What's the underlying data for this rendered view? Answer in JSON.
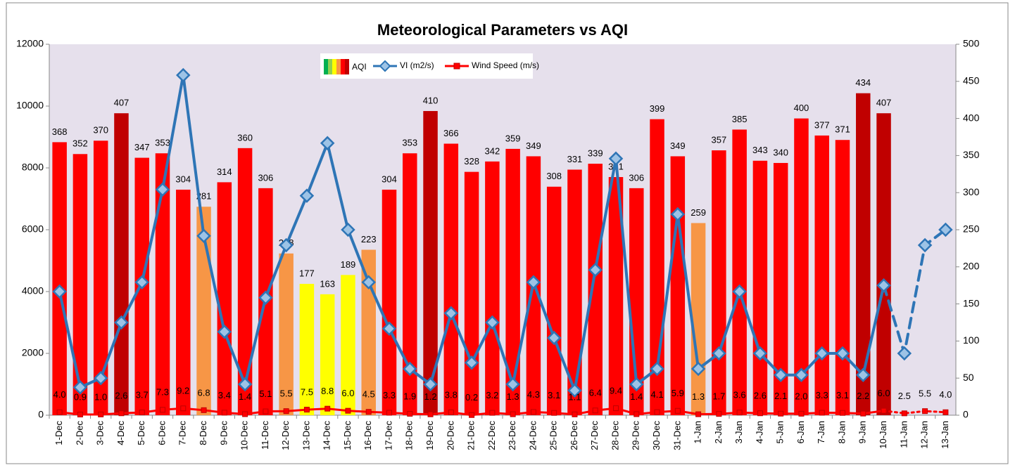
{
  "chart_data": {
    "type": "bar",
    "title": "Meteorological Parameters vs AQI",
    "categories": [
      "1-Dec",
      "2-Dec",
      "3-Dec",
      "4-Dec",
      "5-Dec",
      "6-Dec",
      "7-Dec",
      "8-Dec",
      "9-Dec",
      "10-Dec",
      "11-Dec",
      "12-Dec",
      "13-Dec",
      "14-Dec",
      "15-Dec",
      "16-Dec",
      "17-Dec",
      "18-Dec",
      "19-Dec",
      "20-Dec",
      "21-Dec",
      "22-Dec",
      "23-Dec",
      "24-Dec",
      "25-Dec",
      "26-Dec",
      "27-Dec",
      "28-Dec",
      "29-Dec",
      "30-Dec",
      "31-Dec",
      "1-Jan",
      "2-Jan",
      "3-Jan",
      "4-Jan",
      "5-Jan",
      "6-Jan",
      "7-Jan",
      "8-Jan",
      "9-Jan",
      "10-Jan",
      "11-Jan",
      "12-Jan",
      "13-Jan"
    ],
    "series": [
      {
        "name": "AQI",
        "type": "bar",
        "axis": "y2",
        "values": [
          368,
          352,
          370,
          407,
          347,
          353,
          304,
          281,
          314,
          360,
          306,
          218,
          177,
          163,
          189,
          223,
          304,
          353,
          410,
          366,
          328,
          342,
          359,
          349,
          308,
          331,
          339,
          321,
          306,
          399,
          349,
          259,
          357,
          385,
          343,
          340,
          400,
          377,
          371,
          434,
          407,
          null,
          null,
          null
        ],
        "colors": [
          "#ff0000",
          "#ff0000",
          "#ff0000",
          "#c00000",
          "#ff0000",
          "#ff0000",
          "#ff0000",
          "#f79646",
          "#ff0000",
          "#ff0000",
          "#ff0000",
          "#f79646",
          "#ffff00",
          "#ffff00",
          "#ffff00",
          "#f79646",
          "#ff0000",
          "#ff0000",
          "#c00000",
          "#ff0000",
          "#ff0000",
          "#ff0000",
          "#ff0000",
          "#ff0000",
          "#ff0000",
          "#ff0000",
          "#ff0000",
          "#ff0000",
          "#ff0000",
          "#ff0000",
          "#ff0000",
          "#f79646",
          "#ff0000",
          "#ff0000",
          "#ff0000",
          "#ff0000",
          "#ff0000",
          "#ff0000",
          "#ff0000",
          "#c00000",
          "#c00000",
          null,
          null,
          null
        ]
      },
      {
        "name": "VI (m2/s)",
        "type": "line",
        "axis": "y",
        "color": "#2e75b6",
        "values": [
          4000,
          900,
          1200,
          3000,
          4300,
          7300,
          11000,
          5800,
          2700,
          1000,
          3800,
          5500,
          7100,
          8800,
          6000,
          4300,
          2800,
          1500,
          1000,
          3300,
          1700,
          3000,
          1000,
          4300,
          2500,
          800,
          4700,
          8300,
          1000,
          1500,
          6500,
          1500,
          2000,
          4000,
          2000,
          1300,
          1300,
          2000,
          2000,
          1300,
          4200,
          2000,
          5500,
          6000
        ]
      },
      {
        "name": "Wind Speed (m/s)",
        "type": "line",
        "axis": "y2",
        "color": "#ff0000",
        "values": [
          4,
          0.9,
          1,
          2.6,
          3.7,
          7.3,
          9.2,
          6.8,
          3.4,
          1.4,
          5.1,
          5.5,
          7.5,
          8.8,
          6,
          4.5,
          3.3,
          1.9,
          1.2,
          3.8,
          0.2,
          3.2,
          1.3,
          4.3,
          3.1,
          1.1,
          6.4,
          9.4,
          1.4,
          4.1,
          5.9,
          1.3,
          1.7,
          3.6,
          2.6,
          2.1,
          2,
          3.3,
          3.1,
          2.2,
          6,
          2.5,
          5.5,
          4
        ],
        "value_labels": [
          "4.0",
          "0.9",
          "1.0",
          "2.6",
          "3.7",
          "7.3",
          "9.2",
          "6.8",
          "3.4",
          "1.4",
          "5.1",
          "5.5",
          "7.5",
          "8.8",
          "6.0",
          "4.5",
          "3.3",
          "1.9",
          "1.2",
          "3.8",
          "0.2",
          "3.2",
          "1.3",
          "4.3",
          "3.1",
          "1.1",
          "6.4",
          "9.4",
          "1.4",
          "4.1",
          "5.9",
          "1.3",
          "1.7",
          "3.6",
          "2.6",
          "2.1",
          "2.0",
          "3.3",
          "3.1",
          "2.2",
          "6.0",
          "2.5",
          "5.5",
          "4.0"
        ]
      }
    ],
    "ylim": [
      0,
      12000
    ],
    "yticks": [
      0,
      2000,
      4000,
      6000,
      8000,
      10000,
      12000
    ],
    "y2lim": [
      0,
      500
    ],
    "y2ticks": [
      0,
      50,
      100,
      150,
      200,
      250,
      300,
      350,
      400,
      450,
      500
    ]
  }
}
